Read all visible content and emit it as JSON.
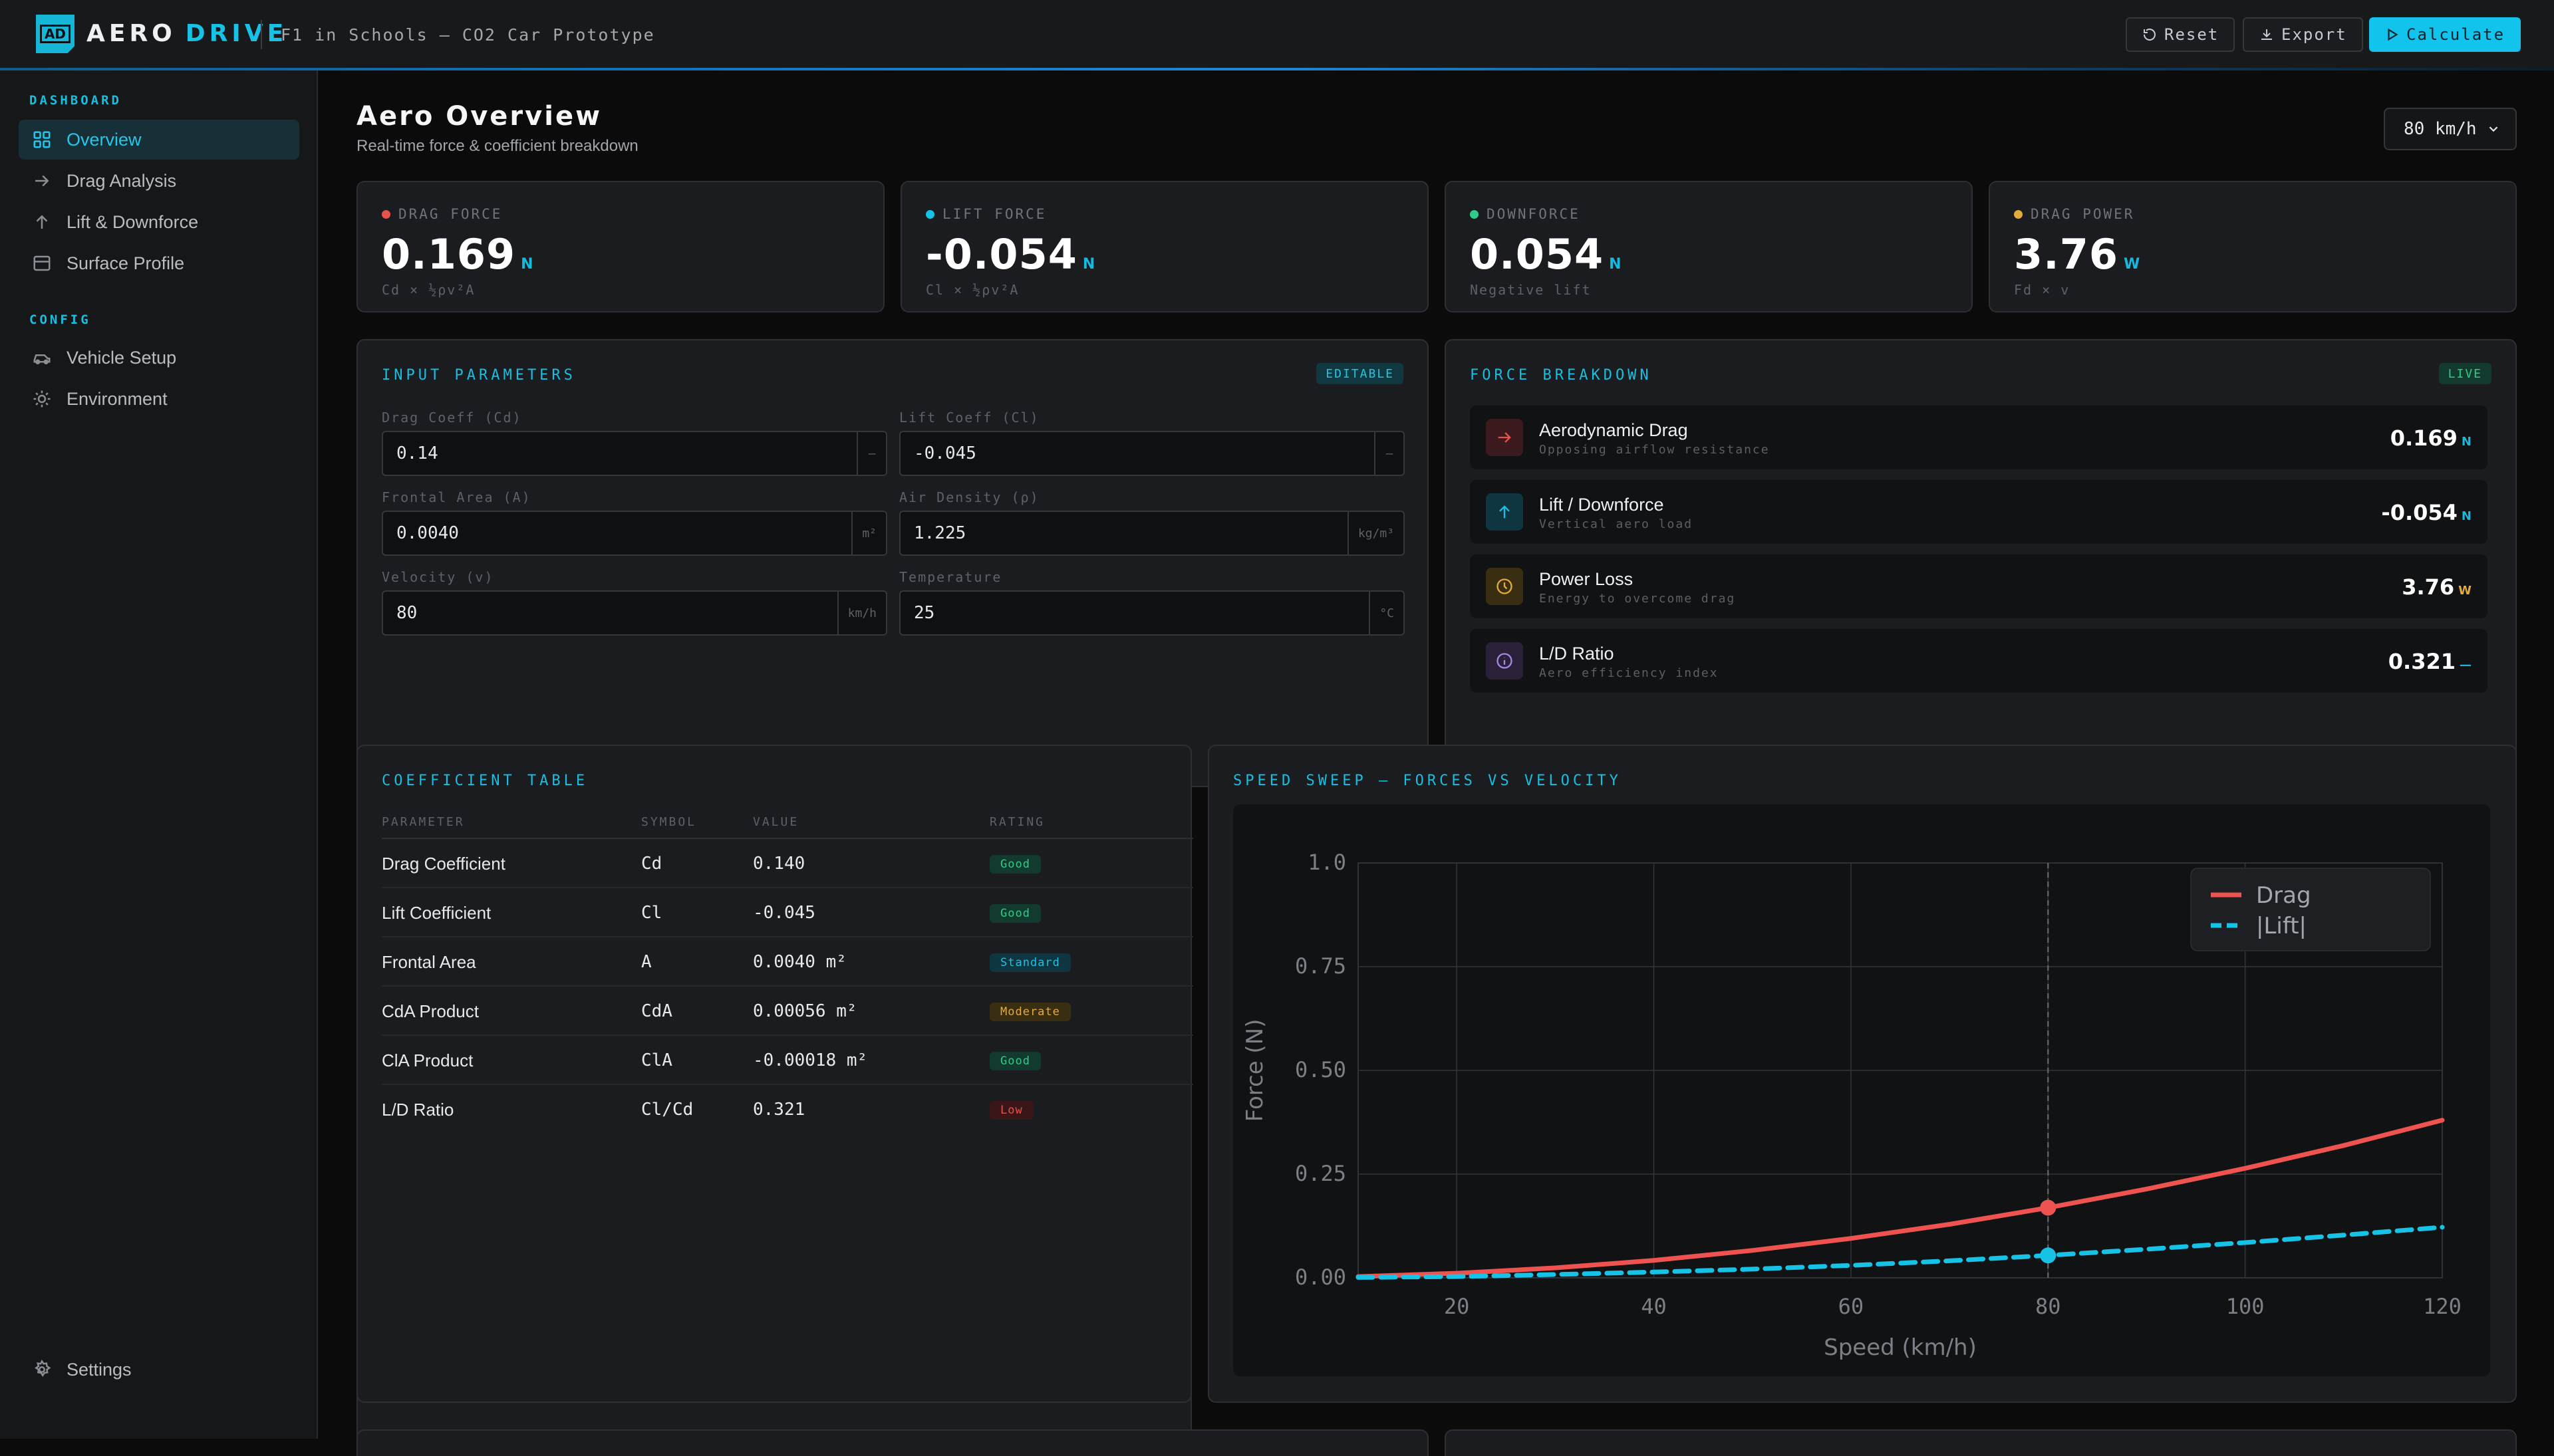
{
  "header": {
    "logo_text": "AD",
    "brand_a": "AERO",
    "brand_b": "DRIVE",
    "subtitle": "F1 in Schools — CO2 Car Prototype",
    "reset_label": "Reset",
    "export_label": "Export",
    "calculate_label": "Calculate"
  },
  "sidebar": {
    "dashboard_label": "DASHBOARD",
    "config_label": "CONFIG",
    "items": [
      {
        "label": "Overview",
        "icon": "grid-icon"
      },
      {
        "label": "Drag Analysis",
        "icon": "arrow-right-icon"
      },
      {
        "label": "Lift & Downforce",
        "icon": "arrow-up-icon"
      },
      {
        "label": "Surface Profile",
        "icon": "surface-icon"
      }
    ],
    "config_items": [
      {
        "label": "Vehicle Setup",
        "icon": "car-icon"
      },
      {
        "label": "Environment",
        "icon": "sun-icon"
      }
    ],
    "settings_label": "Settings"
  },
  "page": {
    "title": "Aero Overview",
    "subtitle": "Real-time force & coefficient breakdown",
    "speed_select": "80 km/h"
  },
  "stats": [
    {
      "label": "DRAG FORCE",
      "value": "0.169",
      "unit": "N",
      "sub": "Cd × ½ρv²A",
      "color": "#e5534b"
    },
    {
      "label": "LIFT FORCE",
      "value": "-0.054",
      "unit": "N",
      "sub": "Cl × ½ρv²A",
      "color": "#16c2e6"
    },
    {
      "label": "DOWNFORCE",
      "value": "0.054",
      "unit": "N",
      "sub": "Negative lift",
      "color": "#2ecc8a"
    },
    {
      "label": "DRAG POWER",
      "value": "3.76",
      "unit": "W",
      "sub": "Fd × v",
      "color": "#e3ab3c"
    }
  ],
  "inputs": {
    "title": "INPUT PARAMETERS",
    "badge": "EDITABLE",
    "fields": [
      {
        "label": "Drag Coeff (Cd)",
        "value": "0.14",
        "unit": "—"
      },
      {
        "label": "Lift Coeff (Cl)",
        "value": "-0.045",
        "unit": "—"
      },
      {
        "label": "Frontal Area (A)",
        "value": "0.0040",
        "unit": "m²"
      },
      {
        "label": "Air Density (ρ)",
        "value": "1.225",
        "unit": "kg/m³"
      },
      {
        "label": "Velocity (v)",
        "value": "80",
        "unit": "km/h"
      },
      {
        "label": "Temperature",
        "value": "25",
        "unit": "°C"
      }
    ]
  },
  "forces": {
    "title": "FORCE BREAKDOWN",
    "badge": "LIVE",
    "rows": [
      {
        "title": "Aerodynamic Drag",
        "sub": "Opposing airflow resistance",
        "value": "0.169",
        "unit": "N"
      },
      {
        "title": "Lift / Downforce",
        "sub": "Vertical aero load",
        "value": "-0.054",
        "unit": "N"
      },
      {
        "title": "Power Loss",
        "sub": "Energy to overcome drag",
        "value": "3.76",
        "unit": "W"
      },
      {
        "title": "L/D Ratio",
        "sub": "Aero efficiency index",
        "value": "0.321",
        "unit": "—"
      }
    ]
  },
  "coef_table": {
    "title": "COEFFICIENT TABLE",
    "headers": [
      "PARAMETER",
      "SYMBOL",
      "VALUE",
      "RATING"
    ],
    "rows": [
      {
        "param": "Drag Coefficient",
        "symbol": "Cd",
        "value": "0.140",
        "rating": "Good"
      },
      {
        "param": "Lift Coefficient",
        "symbol": "Cl",
        "value": "-0.045",
        "rating": "Good"
      },
      {
        "param": "Frontal Area",
        "symbol": "A",
        "value": "0.0040 m²",
        "rating": "Standard"
      },
      {
        "param": "CdA Product",
        "symbol": "CdA",
        "value": "0.00056 m²",
        "rating": "Moderate"
      },
      {
        "param": "ClA Product",
        "symbol": "ClA",
        "value": "-0.00018 m²",
        "rating": "Good"
      },
      {
        "param": "L/D Ratio",
        "symbol": "Cl/Cd",
        "value": "0.321",
        "rating": "Low"
      }
    ]
  },
  "sweep": {
    "title": "SPEED SWEEP — FORCES VS VELOCITY"
  },
  "chart_data": {
    "type": "line",
    "xlabel": "Speed (km/h)",
    "ylabel": "Force (N)",
    "xlim": [
      10,
      120
    ],
    "ylim": [
      0,
      1.0
    ],
    "xticks": [
      20,
      40,
      60,
      80,
      100,
      120
    ],
    "yticks": [
      "0.00",
      "0.25",
      "0.50",
      "0.75",
      "1.0"
    ],
    "grid": true,
    "legend": "top-right",
    "x": [
      10,
      20,
      30,
      40,
      50,
      60,
      70,
      80,
      90,
      100,
      110,
      120
    ],
    "series": [
      {
        "name": "Drag",
        "color": "#ef5350",
        "style": "solid",
        "values": [
          0.003,
          0.011,
          0.024,
          0.042,
          0.066,
          0.095,
          0.129,
          0.169,
          0.214,
          0.264,
          0.319,
          0.38
        ]
      },
      {
        "name": "|Lift|",
        "color": "#16c2e6",
        "style": "dashed",
        "values": [
          0.001,
          0.003,
          0.008,
          0.014,
          0.021,
          0.03,
          0.041,
          0.054,
          0.069,
          0.085,
          0.103,
          0.122
        ]
      }
    ],
    "marker_x": 80
  }
}
